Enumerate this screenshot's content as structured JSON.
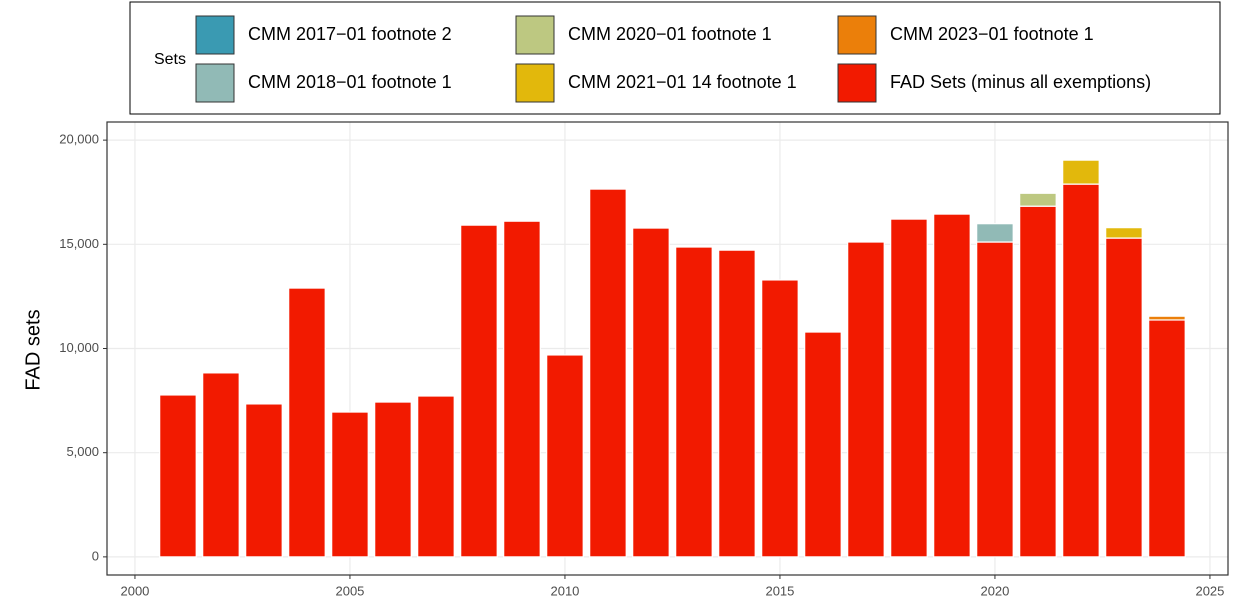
{
  "chart_data": {
    "type": "bar",
    "stacked": true,
    "y_label": "FAD sets",
    "legend_title": "Sets",
    "x": [
      2001,
      2002,
      2003,
      2004,
      2005,
      2006,
      2007,
      2008,
      2009,
      2010,
      2011,
      2012,
      2013,
      2014,
      2015,
      2016,
      2017,
      2018,
      2019,
      2020,
      2021,
      2022,
      2023,
      2024
    ],
    "series": [
      {
        "name": "CMM 2017−01 footnote 2",
        "color": "#3a9ab2",
        "values": [
          null,
          null,
          null,
          null,
          null,
          null,
          null,
          null,
          null,
          null,
          null,
          null,
          null,
          null,
          null,
          null,
          null,
          null,
          null,
          null,
          null,
          null,
          null,
          null
        ]
      },
      {
        "name": "CMM 2018−01 footnote 1",
        "color": "#91bab6",
        "values": [
          null,
          null,
          null,
          null,
          null,
          null,
          null,
          null,
          null,
          null,
          null,
          null,
          null,
          null,
          null,
          null,
          null,
          null,
          null,
          880,
          null,
          null,
          null,
          null
        ]
      },
      {
        "name": "CMM 2020−01 footnote 1",
        "color": "#bdc881",
        "values": [
          null,
          null,
          null,
          null,
          null,
          null,
          null,
          null,
          null,
          null,
          null,
          null,
          null,
          null,
          null,
          null,
          null,
          null,
          null,
          null,
          620,
          null,
          null,
          null
        ]
      },
      {
        "name": "CMM 2021−01 14 footnote 1",
        "color": "#e2b80c",
        "values": [
          null,
          null,
          null,
          null,
          null,
          null,
          null,
          null,
          null,
          null,
          null,
          null,
          null,
          null,
          null,
          null,
          null,
          null,
          null,
          null,
          null,
          1150,
          500,
          null
        ]
      },
      {
        "name": "CMM 2023−01 footnote 1",
        "color": "#eb7f0a",
        "values": [
          null,
          null,
          null,
          null,
          null,
          null,
          null,
          null,
          null,
          null,
          null,
          null,
          null,
          null,
          null,
          null,
          null,
          null,
          null,
          null,
          null,
          null,
          null,
          180
        ]
      },
      {
        "name": "FAD Sets (minus all exemptions)",
        "color": "#f21a00",
        "values": [
          7770,
          8830,
          7340,
          12900,
          6950,
          7430,
          7720,
          15920,
          16110,
          9690,
          17650,
          15780,
          14870,
          14720,
          13290,
          10790,
          15110,
          16210,
          16450,
          15110,
          16830,
          17890,
          15300,
          11370
        ]
      }
    ],
    "xlim": [
      1999.35,
      2025.42
    ],
    "xticks": [
      2000,
      2005,
      2010,
      2015,
      2020,
      2025
    ],
    "ylim": [
      -870,
      20870
    ],
    "yticks": [
      0,
      {
        "value": 5000,
        "label": "5,000"
      },
      {
        "value": 10000,
        "label": "10,000"
      },
      {
        "value": 15000,
        "label": "15,000"
      },
      {
        "value": 20000,
        "label": "20,000"
      }
    ],
    "grid": true,
    "legend_position": "top"
  }
}
